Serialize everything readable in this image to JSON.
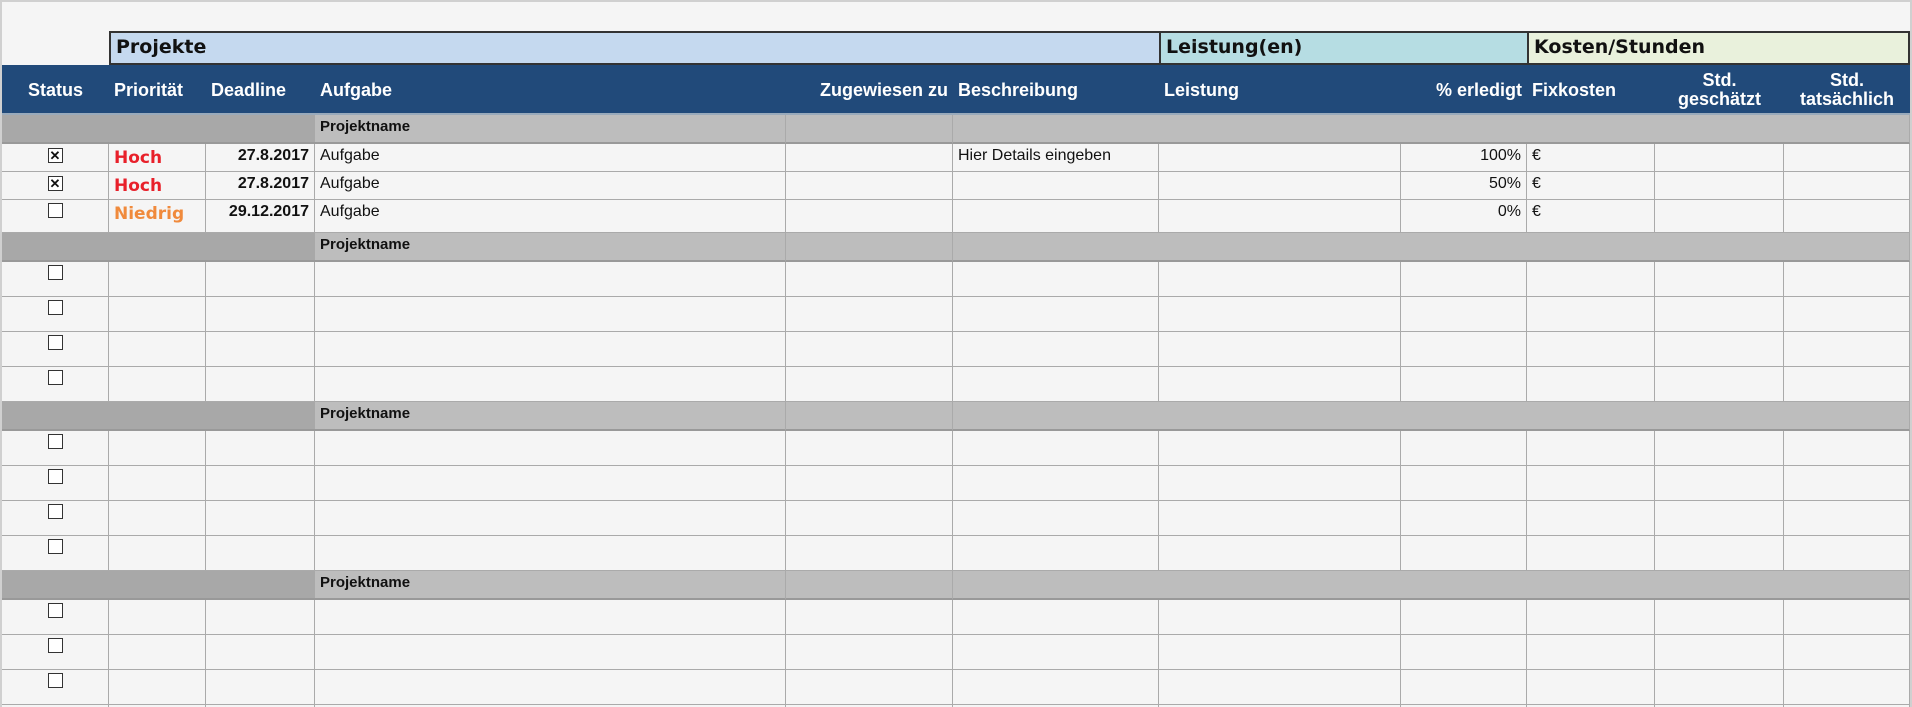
{
  "groups": {
    "projekte": "Projekte",
    "leistungen": "Leistung(en)",
    "kosten": "Kosten/Stunden"
  },
  "colors": {
    "header_bg": "#214a7a",
    "projekte_bg": "#c5d9ef",
    "leistungen_bg": "#b6dde3",
    "kosten_bg": "#e9f1dc",
    "hoch": "#e8202a",
    "niedrig": "#f08a3c"
  },
  "columns": [
    "Status",
    "Priorität",
    "Deadline",
    "Aufgabe",
    "Zugewiesen zu",
    "Beschreibung",
    "Leistung",
    "% erledigt",
    "Fixkosten",
    "Std. geschätzt",
    "Std. tatsächlich"
  ],
  "projects": [
    {
      "name": "Projektname",
      "tasks": [
        {
          "checked": true,
          "check_glyph": "✕",
          "priority": "Hoch",
          "priority_color": "#e8202a",
          "deadline": "27.8.2017",
          "task": "Aufgabe",
          "description": "Hier Details eingeben",
          "percent": "100%",
          "cost": "€"
        },
        {
          "checked": true,
          "check_glyph": "✕",
          "priority": "Hoch",
          "priority_color": "#e8202a",
          "deadline": "27.8.2017",
          "task": "Aufgabe",
          "description": "",
          "percent": "50%",
          "cost": "€"
        },
        {
          "checked": false,
          "check_glyph": "",
          "priority": "Niedrig",
          "priority_color": "#f08a3c",
          "deadline": "29.12.2017",
          "task": "Aufgabe",
          "description": "",
          "percent": "0%",
          "cost": "€"
        }
      ]
    },
    {
      "name": "Projektname",
      "empty_rows": 4
    },
    {
      "name": "Projektname",
      "empty_rows": 4
    },
    {
      "name": "Projektname",
      "empty_rows": 4
    }
  ]
}
